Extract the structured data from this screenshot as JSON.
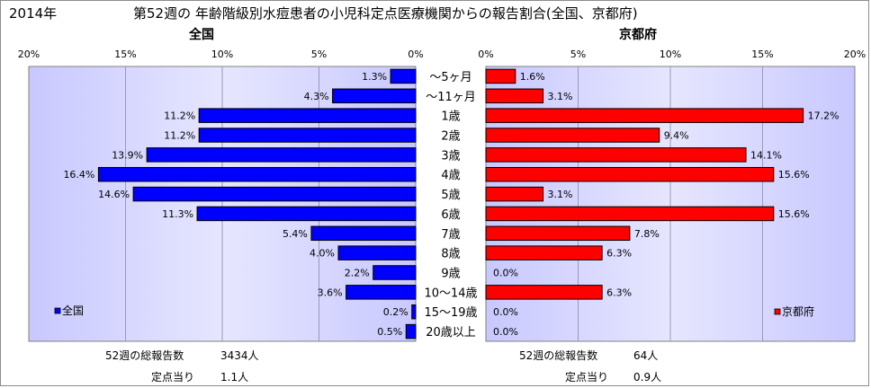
{
  "header": {
    "year": "2014年",
    "title": "第52週の 年齢階級別水痘患者の小児科定点医療機関からの報告割合(全国、京都府)"
  },
  "chart_data": [
    {
      "type": "bar",
      "orientation": "horizontal",
      "title": "全国",
      "legend": "全国",
      "legend_position": "bottom-left",
      "color": "#0000ff",
      "xlim": [
        0,
        20
      ],
      "x_reversed": true,
      "ticks": [
        "20%",
        "15%",
        "10%",
        "5%",
        "0%"
      ],
      "categories": [
        "～5ヶ月",
        "～11ヶ月",
        "1歳",
        "2歳",
        "3歳",
        "4歳",
        "5歳",
        "6歳",
        "7歳",
        "8歳",
        "9歳",
        "10～14歳",
        "15～19歳",
        "20歳以上"
      ],
      "values": [
        1.3,
        4.3,
        11.2,
        11.2,
        13.9,
        16.4,
        14.6,
        11.3,
        5.4,
        4.0,
        2.2,
        3.6,
        0.2,
        0.5
      ],
      "labels": [
        "1.3%",
        "4.3%",
        "11.2%",
        "11.2%",
        "13.9%",
        "16.4%",
        "14.6%",
        "11.3%",
        "5.4%",
        "4.0%",
        "2.2%",
        "3.6%",
        "0.2%",
        "0.5%"
      ]
    },
    {
      "type": "bar",
      "orientation": "horizontal",
      "title": "京都府",
      "legend": "京都府",
      "legend_position": "bottom-right",
      "color": "#ff0000",
      "xlim": [
        0,
        20
      ],
      "x_reversed": false,
      "ticks": [
        "0%",
        "5%",
        "10%",
        "15%",
        "20%"
      ],
      "categories": [
        "～5ヶ月",
        "～11ヶ月",
        "1歳",
        "2歳",
        "3歳",
        "4歳",
        "5歳",
        "6歳",
        "7歳",
        "8歳",
        "9歳",
        "10～14歳",
        "15～19歳",
        "20歳以上"
      ],
      "values": [
        1.6,
        3.1,
        17.2,
        9.4,
        14.1,
        15.6,
        3.1,
        15.6,
        7.8,
        6.3,
        0.0,
        6.3,
        0.0,
        0.0
      ],
      "labels": [
        "1.6%",
        "3.1%",
        "17.2%",
        "9.4%",
        "14.1%",
        "15.6%",
        "3.1%",
        "15.6%",
        "7.8%",
        "6.3%",
        "0.0%",
        "6.3%",
        "0.0%",
        "0.0%"
      ]
    }
  ],
  "stats": {
    "left": {
      "total_label": "52週の総報告数",
      "total_value": "3434人",
      "per_label": "定点当り",
      "per_value": "1.1人"
    },
    "right": {
      "total_label": "52週の総報告数",
      "total_value": "64人",
      "per_label": "定点当り",
      "per_value": "0.9人"
    }
  },
  "colors": {
    "plot_bg": "#ccccff",
    "bar_outline": "#000000"
  }
}
